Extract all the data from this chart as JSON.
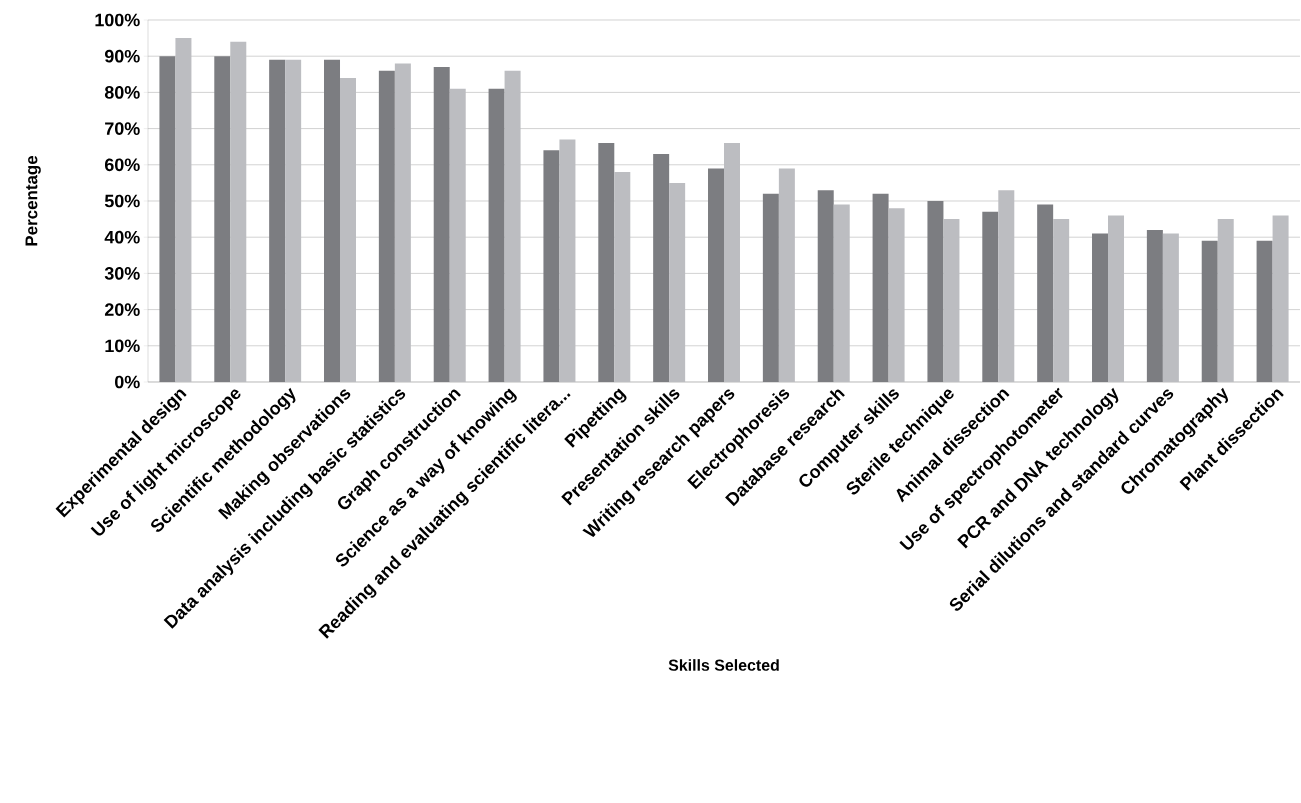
{
  "chart_data": {
    "type": "bar",
    "xlabel": "Skills Selected",
    "ylabel": "Percentage",
    "categories": [
      "Experimental design",
      "Use of light microscope",
      "Scientific methodology",
      "Making observations",
      "Data analysis including basic statistics",
      "Graph construction",
      "Science as a way of knowing",
      "Reading and evaluating scientific litera...",
      "Pipetting",
      "Presentation skills",
      "Writing research papers",
      "Electrophoresis",
      "Database research",
      "Computer skills",
      "Sterile technique",
      "Animal dissection",
      "Use of spectrophotometer",
      "PCR and DNA technology",
      "Serial dilutions and standard curves",
      "Chromatography",
      "Plant dissection"
    ],
    "series": [
      {
        "color": "#7c7d81",
        "values": [
          90,
          90,
          89,
          89,
          86,
          87,
          81,
          64,
          66,
          63,
          59,
          52,
          53,
          52,
          50,
          47,
          49,
          41,
          42,
          39,
          39
        ]
      },
      {
        "color": "#bcbdc1",
        "values": [
          95,
          94,
          89,
          84,
          88,
          81,
          86,
          67,
          58,
          55,
          66,
          59,
          49,
          48,
          45,
          53,
          45,
          46,
          41,
          45,
          46
        ]
      }
    ],
    "ylim": [
      0,
      100
    ],
    "yticks": [
      {
        "value": 0,
        "label": "0%"
      },
      {
        "value": 10,
        "label": "10%"
      },
      {
        "value": 20,
        "label": "20%"
      },
      {
        "value": 30,
        "label": "30%"
      },
      {
        "value": 40,
        "label": "40%"
      },
      {
        "value": 50,
        "label": "50%"
      },
      {
        "value": 60,
        "label": "60%"
      },
      {
        "value": 70,
        "label": "70%"
      },
      {
        "value": 80,
        "label": "80%"
      },
      {
        "value": 90,
        "label": "90%"
      },
      {
        "value": 100,
        "label": "100%"
      }
    ],
    "grid": "y"
  }
}
